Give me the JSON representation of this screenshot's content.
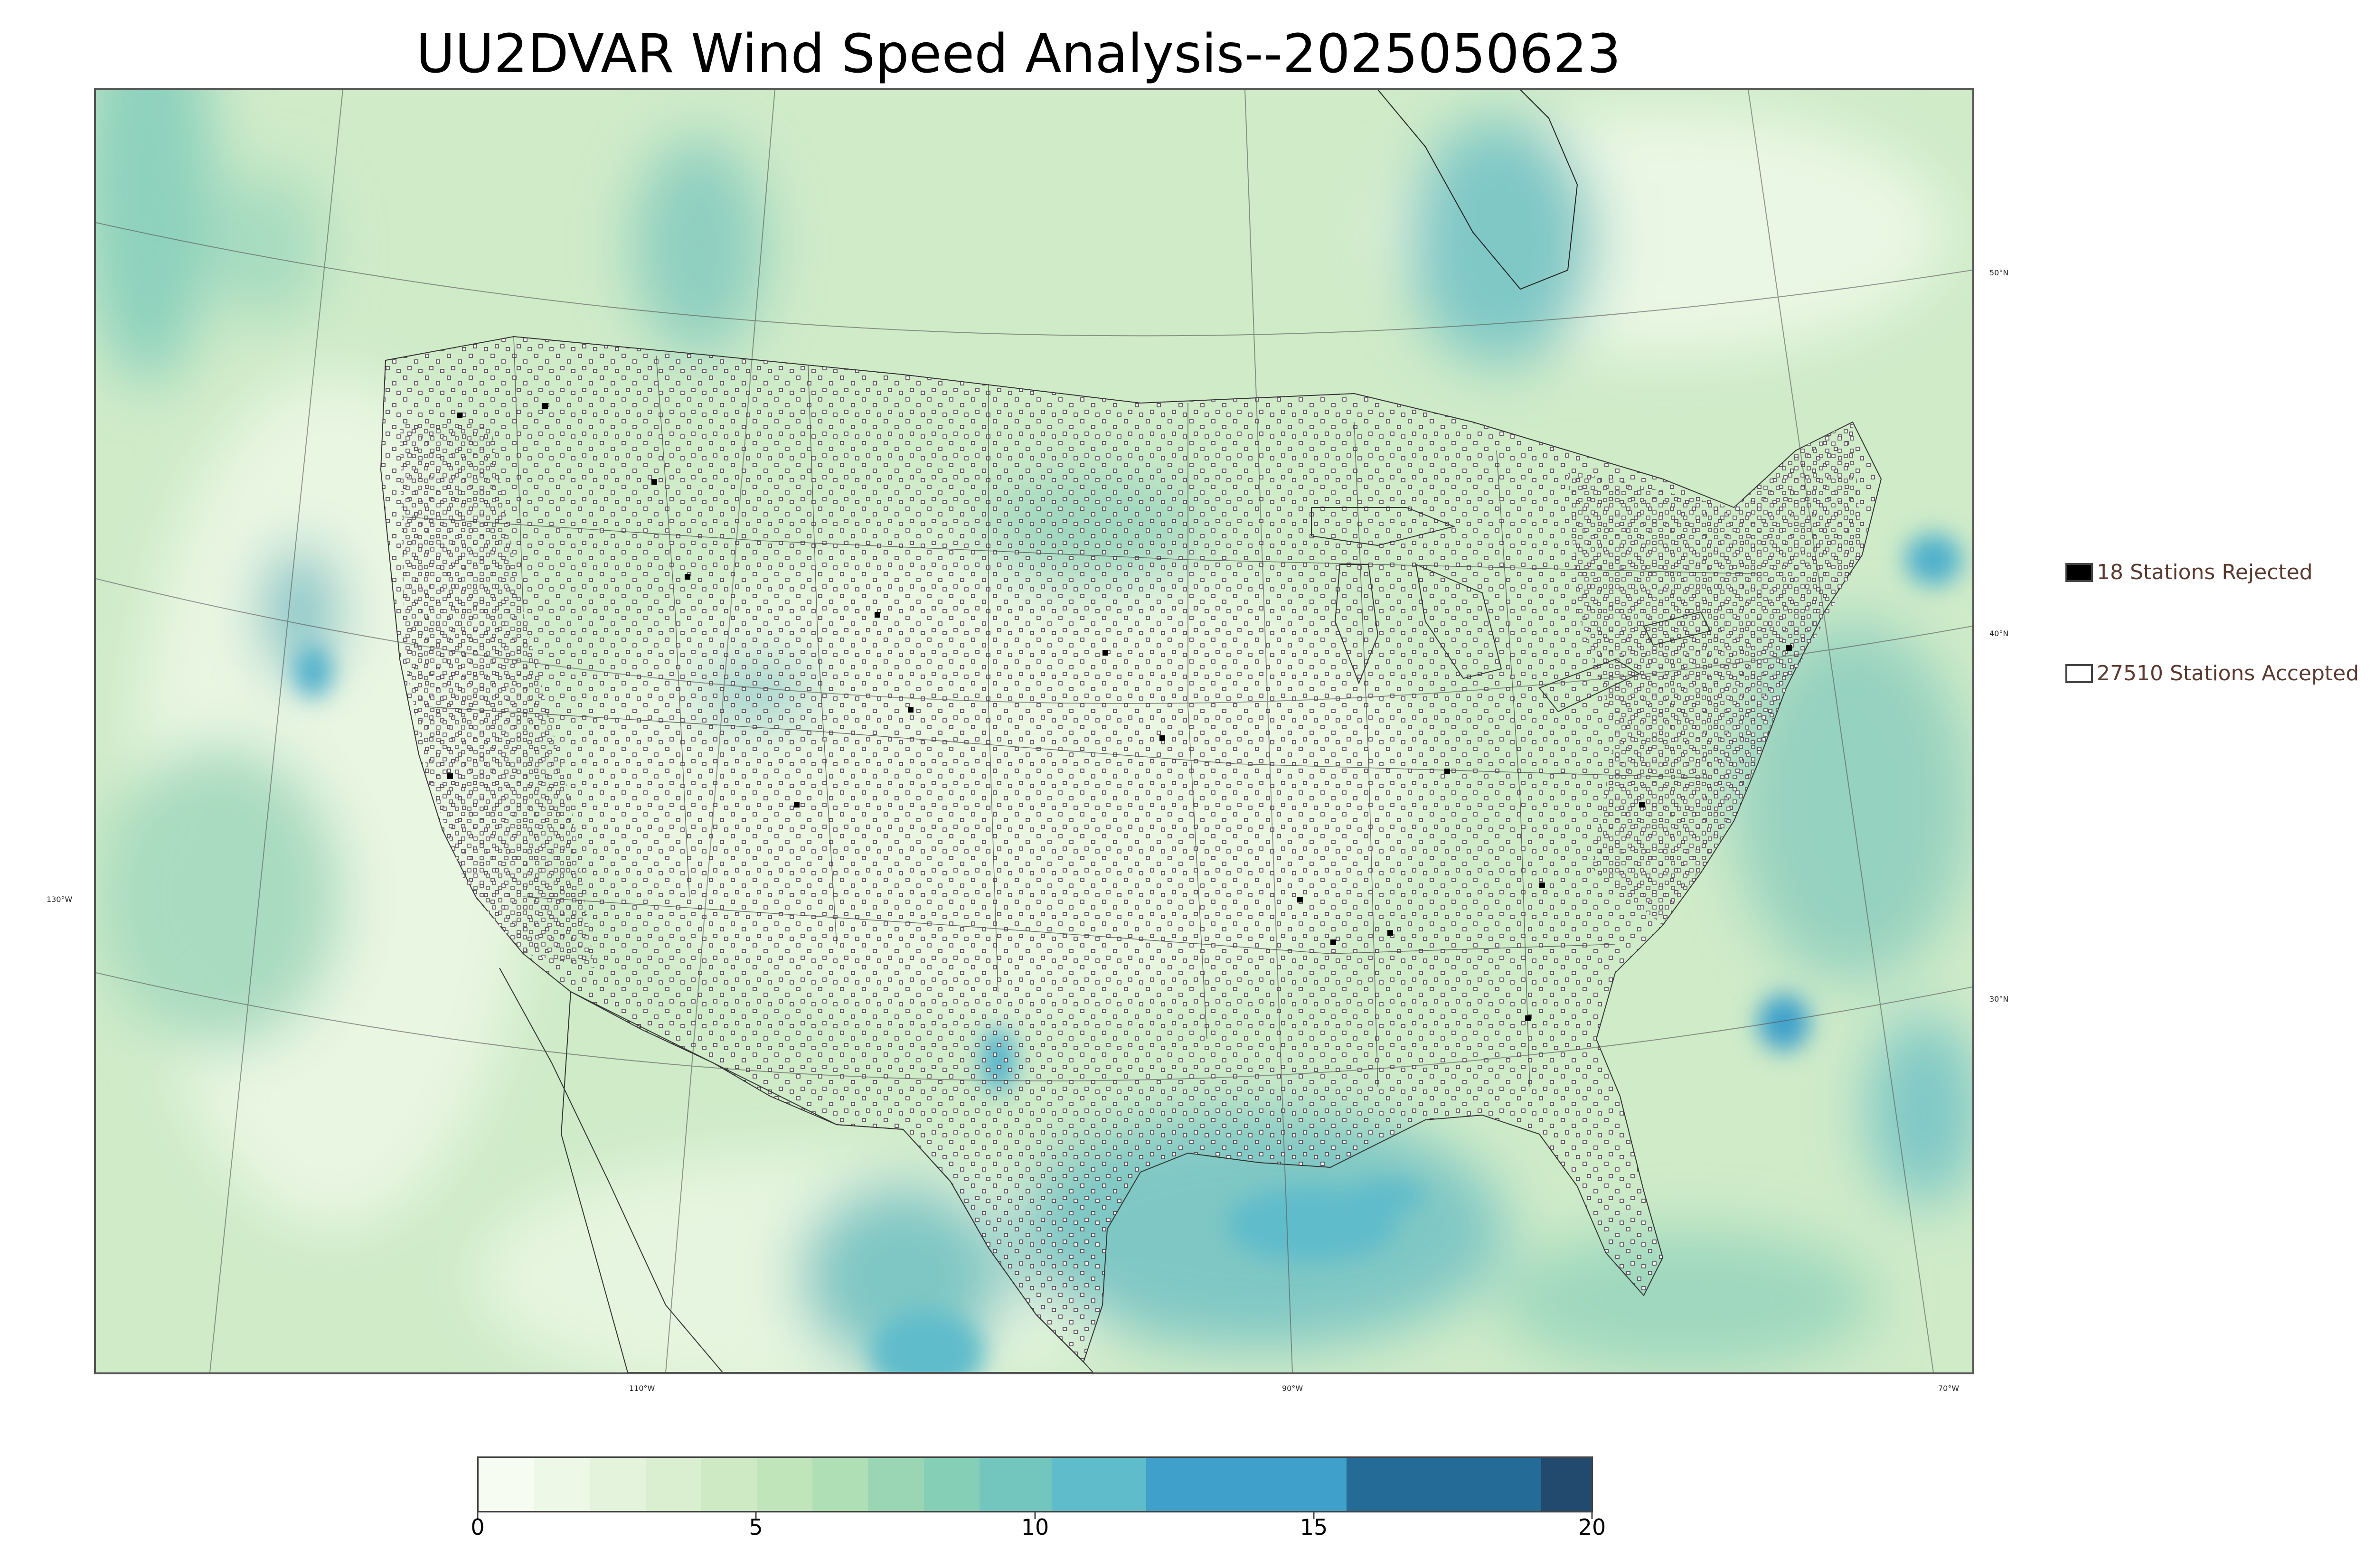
{
  "title": "UU2DVAR Wind Speed Analysis--2025050623",
  "graticule_labels": {
    "lat": [
      "50°N",
      "40°N",
      "30°N"
    ],
    "lon": [
      "130°W",
      "110°W",
      "90°W",
      "70°W"
    ]
  },
  "legend": {
    "rejected": {
      "label": "18 Stations Rejected",
      "color": "#000000"
    },
    "accepted": {
      "label": "27510 Stations Accepted",
      "color": "#ffffff"
    }
  },
  "colorbar": {
    "ticks": [
      "0",
      "5",
      "10",
      "15",
      "20"
    ],
    "range": [
      0,
      20
    ],
    "bins": [
      {
        "from": 0,
        "to": 1,
        "color": "#f7fcf2"
      },
      {
        "from": 1,
        "to": 2,
        "color": "#eef8e6"
      },
      {
        "from": 2,
        "to": 3,
        "color": "#e4f4dc"
      },
      {
        "from": 3,
        "to": 4,
        "color": "#d9efd0"
      },
      {
        "from": 4,
        "to": 5,
        "color": "#cdeac5"
      },
      {
        "from": 5,
        "to": 6,
        "color": "#c0e5bb"
      },
      {
        "from": 6,
        "to": 7,
        "color": "#afdfb5"
      },
      {
        "from": 7,
        "to": 8,
        "color": "#9bd6b4"
      },
      {
        "from": 8,
        "to": 9,
        "color": "#86cfb7"
      },
      {
        "from": 9,
        "to": 10.3,
        "color": "#72c6bd"
      },
      {
        "from": 10.3,
        "to": 12,
        "color": "#5fbccb"
      },
      {
        "from": 12,
        "to": 15.6,
        "color": "#3ea0cb"
      },
      {
        "from": 15.6,
        "to": 19.1,
        "color": "#256b97"
      },
      {
        "from": 19.1,
        "to": 20,
        "color": "#214a6e"
      }
    ]
  },
  "colors": {
    "land_base": "#d6eed0",
    "ocean_base": "#c9e9c4",
    "strong_wind": "#5fbccb",
    "very_strong_wind": "#3ea0cb"
  }
}
